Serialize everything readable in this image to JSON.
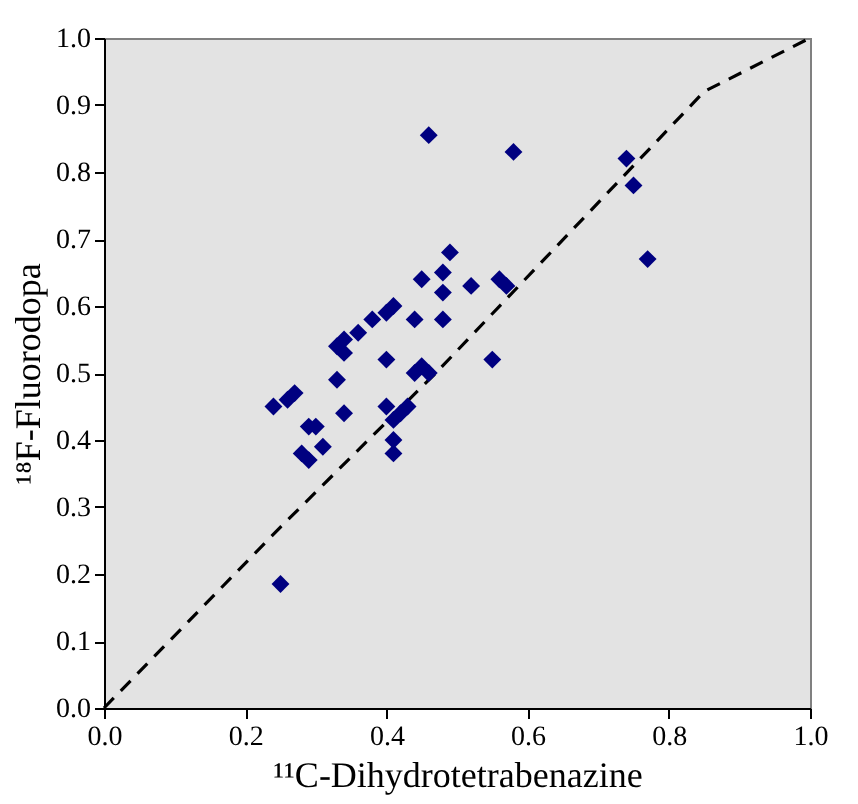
{
  "chart_data": {
    "type": "scatter",
    "xlabel": "¹¹C-Dihydrotetrabenazine",
    "ylabel": "¹⁸F-Fluorodopa",
    "xlim": [
      0,
      1
    ],
    "ylim": [
      0,
      1
    ],
    "xticks": [
      {
        "value": 0,
        "label": "0.0"
      },
      {
        "value": 0.2,
        "label": "0.2"
      },
      {
        "value": 0.4,
        "label": "0.4"
      },
      {
        "value": 0.6,
        "label": "0.6"
      },
      {
        "value": 0.8,
        "label": "0.8"
      },
      {
        "value": 1,
        "label": "1.0"
      }
    ],
    "yticks": [
      {
        "value": 0,
        "label": "0.0"
      },
      0.1,
      0.2,
      0.3,
      0.4,
      0.5,
      0.6,
      0.7,
      0.8,
      0.9,
      {
        "value": 1,
        "label": "1.0"
      }
    ],
    "grid": false,
    "series": [
      {
        "type": "line",
        "line_style": "dashed",
        "marker": "none",
        "color": "#000000",
        "x": [
          0,
          0.25,
          0.47,
          0.85,
          1
        ],
        "values": [
          0,
          0.27,
          0.5,
          0.92,
          1
        ]
      },
      {
        "marker": "diamond",
        "color": "#000080",
        "x": [
          0.25,
          0.24,
          0.26,
          0.27,
          0.28,
          0.29,
          0.3,
          0.31,
          0.29,
          0.33,
          0.34,
          0.33,
          0.34,
          0.36,
          0.34,
          0.38,
          0.4,
          0.41,
          0.4,
          0.4,
          0.41,
          0.42,
          0.41,
          0.41,
          0.43,
          0.44,
          0.44,
          0.45,
          0.45,
          0.46,
          0.46,
          0.48,
          0.48,
          0.48,
          0.49,
          0.52,
          0.55,
          0.56,
          0.57,
          0.58,
          0.74,
          0.75,
          0.77
        ],
        "values": [
          0.185,
          0.45,
          0.46,
          0.47,
          0.38,
          0.37,
          0.42,
          0.39,
          0.42,
          0.49,
          0.44,
          0.54,
          0.53,
          0.56,
          0.55,
          0.58,
          0.59,
          0.6,
          0.52,
          0.45,
          0.43,
          0.44,
          0.4,
          0.38,
          0.45,
          0.5,
          0.58,
          0.64,
          0.51,
          0.5,
          0.855,
          0.58,
          0.62,
          0.65,
          0.68,
          0.63,
          0.52,
          0.64,
          0.63,
          0.83,
          0.82,
          0.78,
          0.67
        ]
      }
    ]
  }
}
